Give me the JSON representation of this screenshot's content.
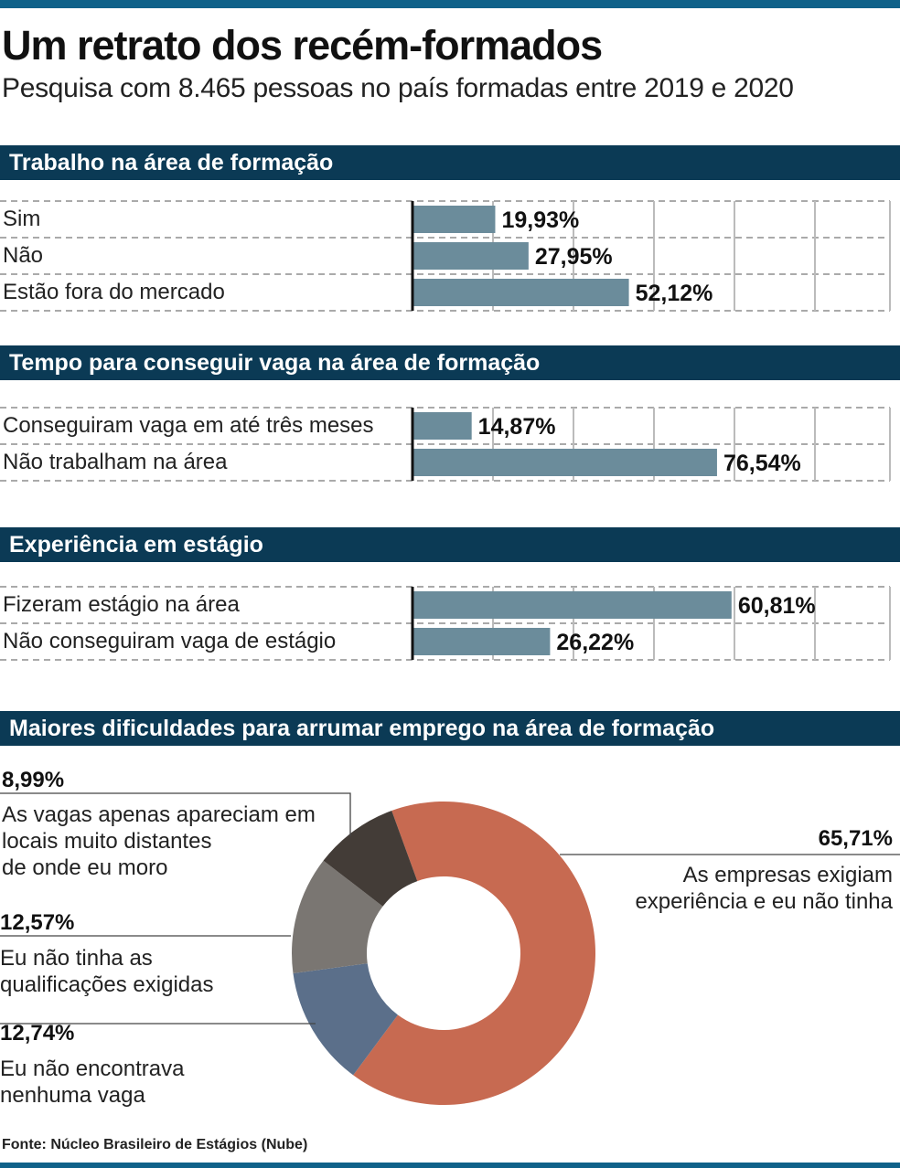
{
  "title": "Um retrato dos recém-formados",
  "subtitle": "Pesquisa com 8.465 pessoas no país formadas entre 2019 e 2020",
  "colors": {
    "header": "#0b3a55",
    "bar": "#6b8c9b",
    "rule": "#0f6189"
  },
  "chart_data": [
    {
      "type": "bar",
      "orientation": "horizontal",
      "title": "Trabalho na área de formação",
      "categories": [
        "Sim",
        "Não",
        "Estão fora do mercado"
      ],
      "values": [
        19.93,
        27.95,
        52.12
      ],
      "labels": [
        "19,93%",
        "27,95%",
        "52,12%"
      ],
      "xlim": [
        0,
        115
      ]
    },
    {
      "type": "bar",
      "orientation": "horizontal",
      "title": "Tempo para conseguir vaga na área de formação",
      "categories": [
        "Conseguiram vaga em até três meses",
        "Não trabalham na área"
      ],
      "values": [
        14.87,
        76.54
      ],
      "labels": [
        "14,87%",
        "76,54%"
      ],
      "xlim": [
        0,
        120
      ]
    },
    {
      "type": "bar",
      "orientation": "horizontal",
      "title": "Experiência em estágio",
      "categories": [
        "Fizeram estágio na área",
        "Não conseguiram vaga de estágio"
      ],
      "values": [
        60.81,
        26.22
      ],
      "labels": [
        "60,81%",
        "26,22%"
      ],
      "xlim": [
        0,
        91
      ]
    },
    {
      "type": "pie",
      "donut": true,
      "title": "Maiores dificuldades para arrumar emprego na área de formação",
      "slices": [
        {
          "label": "As empresas exigiam experiência e eu não tinha",
          "value": 65.71,
          "display": "65,71%",
          "color": "#c76a51"
        },
        {
          "label": "Eu não encontrava nenhuma vaga",
          "value": 12.74,
          "display": "12,74%",
          "color": "#5b6f8a"
        },
        {
          "label": "Eu não tinha as qualificações exigidas",
          "value": 12.57,
          "display": "12,57%",
          "color": "#7a7672"
        },
        {
          "label": "As vagas apenas apareciam em locais muito distantes de onde eu moro",
          "value": 8.99,
          "display": "8,99%",
          "color": "#433c37"
        }
      ]
    }
  ],
  "donut_text": {
    "s0": [
      "As empresas exigiam",
      "experiência e eu não tinha"
    ],
    "s1": [
      "Eu não encontrava",
      "nenhuma vaga"
    ],
    "s2": [
      "Eu não tinha as",
      "qualificações exigidas"
    ],
    "s3": [
      "As vagas apenas apareciam em",
      "locais muito distantes",
      "de onde eu moro"
    ]
  },
  "source": "Fonte: Núcleo Brasileiro de Estágios (Nube)"
}
